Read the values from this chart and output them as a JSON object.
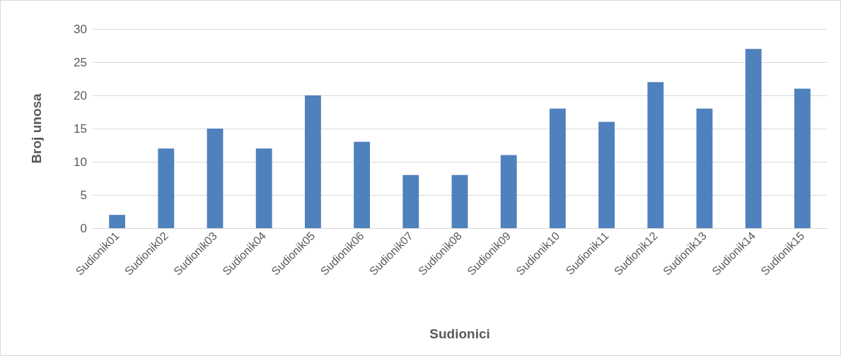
{
  "chart_data": {
    "type": "bar",
    "xlabel": "Sudionici",
    "ylabel": "Broj unosa",
    "categories": [
      "Sudionik01",
      "Sudionik02",
      "Sudionik03",
      "Sudionik04",
      "Sudionik05",
      "Sudionik06",
      "Sudionik07",
      "Sudionik08",
      "Sudionik09",
      "Sudionik10",
      "Sudionik11",
      "Sudionik12",
      "Sudionik13",
      "Sudionik14",
      "Sudionik15"
    ],
    "values": [
      2,
      12,
      15,
      12,
      20,
      13,
      8,
      8,
      11,
      18,
      16,
      22,
      18,
      27,
      21
    ],
    "color": "#4f81bd",
    "ylim": [
      0,
      30
    ],
    "yticks": [
      0,
      5,
      10,
      15,
      20,
      25,
      30
    ],
    "grid": "y"
  }
}
